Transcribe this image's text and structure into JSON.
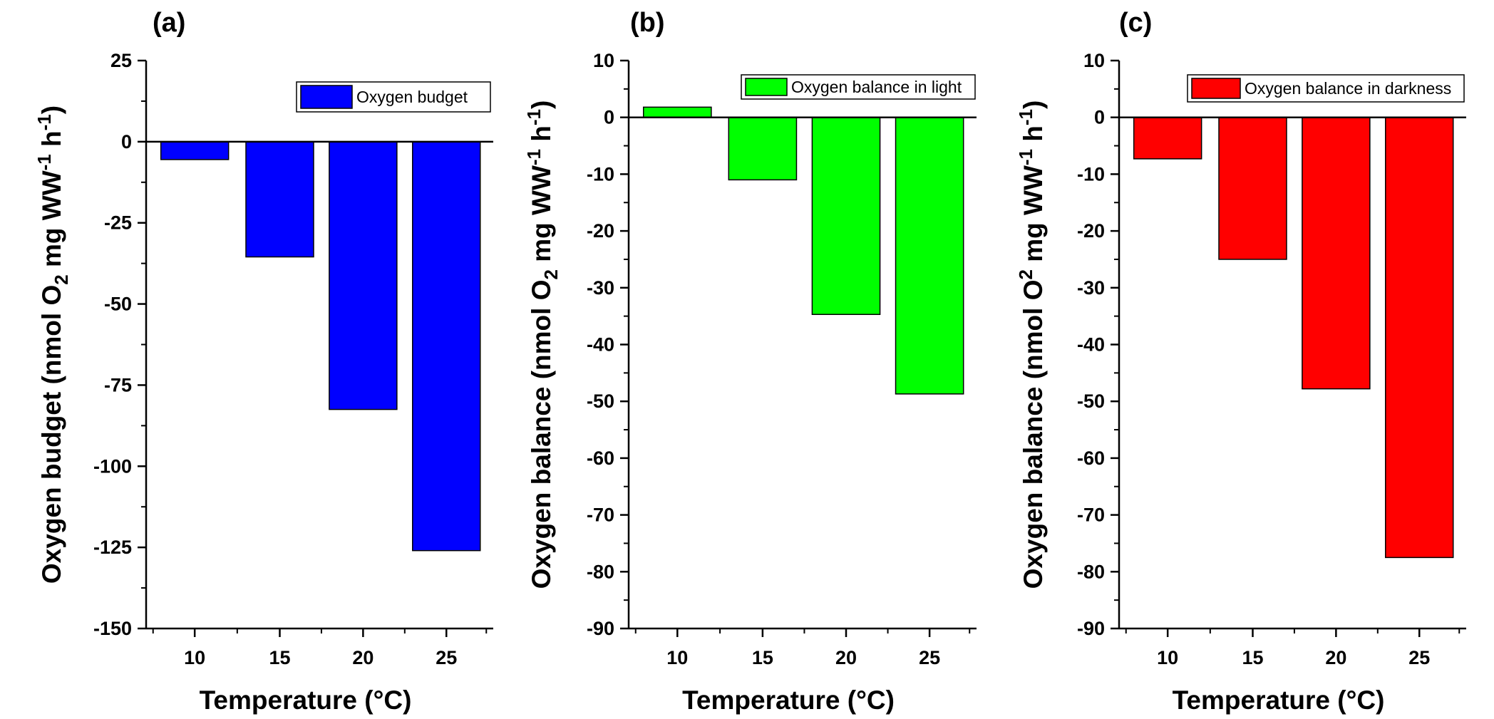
{
  "chart_data": [
    {
      "type": "bar",
      "panel_label": "(a)",
      "categories": [
        "10",
        "15",
        "20",
        "25"
      ],
      "values": [
        -5.5,
        -35.5,
        -82.5,
        -126
      ],
      "color": "#0000ff",
      "legend": [
        "Oxygen budget"
      ],
      "legend_position": "top-right",
      "xlabel": "Temperature (°C)",
      "ylabel": {
        "main": "Oxygen budget (nmol O",
        "sub": "2",
        "mid": " mg WW",
        "sup1": "-1",
        "mid2": " h",
        "sup2": "-1",
        "end": ")"
      },
      "ylim": [
        -150,
        25
      ],
      "yticks": [
        "25",
        "0",
        "-25",
        "-50",
        "-75",
        "-100",
        "-125",
        "-150"
      ],
      "grid": false
    },
    {
      "type": "bar",
      "panel_label": "(b)",
      "categories": [
        "10",
        "15",
        "20",
        "25"
      ],
      "values": [
        1.8,
        -11,
        -34.7,
        -48.7
      ],
      "color": "#00ff00",
      "legend": [
        "Oxygen balance in light"
      ],
      "legend_position": "top-right",
      "xlabel": "Temperature (°C)",
      "ylabel": {
        "main": "Oxygen balance (nmol O",
        "sub": "2",
        "mid": " mg WW",
        "sup1": "-1",
        "mid2": " h",
        "sup2": "-1",
        "end": ")"
      },
      "ylim": [
        -90,
        10
      ],
      "yticks": [
        "10",
        "0",
        "-10",
        "-20",
        "-30",
        "-40",
        "-50",
        "-60",
        "-70",
        "-80",
        "-90"
      ],
      "grid": false
    },
    {
      "type": "bar",
      "panel_label": "(c)",
      "categories": [
        "10",
        "15",
        "20",
        "25"
      ],
      "values": [
        -7.3,
        -25,
        -47.8,
        -77.5
      ],
      "color": "#ff0000",
      "legend": [
        "Oxygen balance in darkness"
      ],
      "legend_position": "top-right",
      "xlabel": "Temperature (°C)",
      "ylabel": {
        "main": "Oxygen balance (nmol O",
        "sup0": "2",
        "mid": " mg WW",
        "sup1": "-1",
        "mid2": " h",
        "sup2": "-1",
        "end": ")"
      },
      "ylim": [
        -90,
        10
      ],
      "yticks": [
        "10",
        "0",
        "-10",
        "-20",
        "-30",
        "-40",
        "-50",
        "-60",
        "-70",
        "-80",
        "-90"
      ],
      "grid": false
    }
  ]
}
